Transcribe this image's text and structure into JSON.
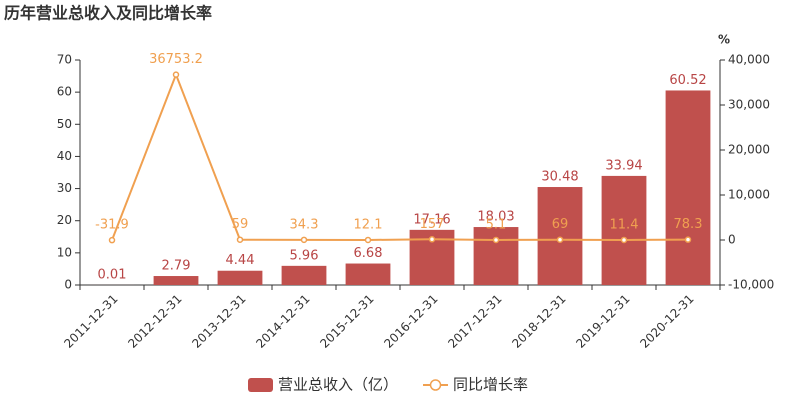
{
  "chart_data": {
    "type": "bar",
    "title": "历年营业总收入及同比增长率",
    "y2_label": "%",
    "categories": [
      "2011-12-31",
      "2012-12-31",
      "2013-12-31",
      "2014-12-31",
      "2015-12-31",
      "2016-12-31",
      "2017-12-31",
      "2018-12-31",
      "2019-12-31",
      "2020-12-31"
    ],
    "series": [
      {
        "name": "营业总收入（亿）",
        "type": "bar",
        "color": "#c0504d",
        "label_color": "#b84545",
        "values": [
          0.01,
          2.79,
          4.44,
          5.96,
          6.68,
          17.16,
          18.03,
          30.48,
          33.94,
          60.52
        ]
      },
      {
        "name": "同比增长率",
        "type": "line",
        "axis": "y2",
        "color": "#f0a050",
        "label_color": "#f0a050",
        "values": [
          -31.9,
          36753.2,
          59,
          34.3,
          12.1,
          157,
          5.1,
          69,
          11.4,
          78.3
        ]
      }
    ],
    "ylim": [
      0,
      70
    ],
    "yticks": [
      0,
      10,
      20,
      30,
      40,
      50,
      60,
      70
    ],
    "y2lim": [
      -10000,
      40000
    ],
    "y2ticks": [
      {
        "value": -10000,
        "label": "-10,000"
      },
      0,
      {
        "value": 10000,
        "label": "10,000"
      },
      {
        "value": 20000,
        "label": "20,000"
      },
      {
        "value": 30000,
        "label": "30,000"
      },
      {
        "value": 40000,
        "label": "40,000"
      }
    ],
    "grid": false,
    "legend": "bottom"
  }
}
